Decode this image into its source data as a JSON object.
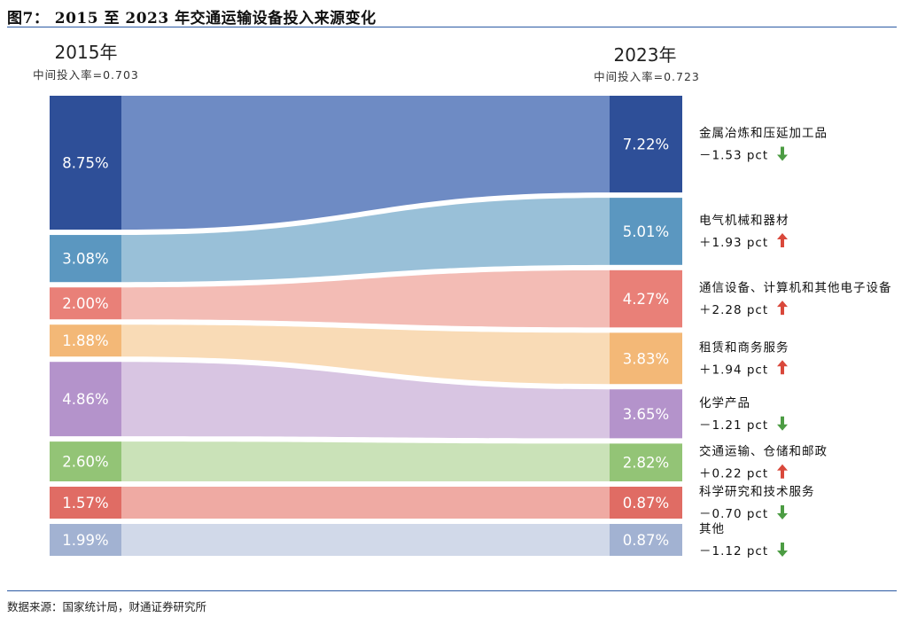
{
  "title": "图7： 2015 至 2023 年交通运输设备投入来源变化",
  "source": "数据来源：国家统计局，财通证券研究所",
  "chart_data": {
    "type": "sankey",
    "left": {
      "year": "2015年",
      "subtitle": "中间投入率=0.703"
    },
    "right": {
      "year": "2023年",
      "subtitle": "中间投入率=0.723"
    },
    "flows": [
      {
        "name": "金属冶炼和压延加工品",
        "v2015": 8.75,
        "v2023": 7.22,
        "v2015_label": "8.75%",
        "v2023_label": "7.22%",
        "change": "－1.53 pct",
        "direction": "down",
        "color": "#2e4f98",
        "flow_color": "#6e8bc4"
      },
      {
        "name": "电气机械和器材",
        "v2015": 3.08,
        "v2023": 5.01,
        "v2015_label": "3.08%",
        "v2023_label": "5.01%",
        "change": "＋1.93 pct",
        "direction": "up",
        "color": "#5b97c0",
        "flow_color": "#99c0d8"
      },
      {
        "name": "通信设备、计算机和其他电子设备",
        "v2015": 2.0,
        "v2023": 4.27,
        "v2015_label": "2.00%",
        "v2023_label": "4.27%",
        "change": "＋2.28 pct",
        "direction": "up",
        "color": "#e98078",
        "flow_color": "#f3bcb5"
      },
      {
        "name": "租赁和商务服务",
        "v2015": 1.88,
        "v2023": 3.83,
        "v2015_label": "1.88%",
        "v2023_label": "3.83%",
        "change": "＋1.94 pct",
        "direction": "up",
        "color": "#f3b877",
        "flow_color": "#f9dbb6"
      },
      {
        "name": "化学产品",
        "v2015": 4.86,
        "v2023": 3.65,
        "v2015_label": "4.86%",
        "v2023_label": "3.65%",
        "change": "－1.21 pct",
        "direction": "down",
        "color": "#b493cb",
        "flow_color": "#d8c5e2"
      },
      {
        "name": "交通运输、仓储和邮政",
        "v2015": 2.6,
        "v2023": 2.82,
        "v2015_label": "2.60%",
        "v2023_label": "2.82%",
        "change": "＋0.22 pct",
        "direction": "up",
        "color": "#93c476",
        "flow_color": "#cae2b8"
      },
      {
        "name": "科学研究和技术服务",
        "v2015": 1.57,
        "v2023": 0.87,
        "v2015_label": "1.57%",
        "v2023_label": "0.87%",
        "change": "－0.70 pct",
        "direction": "down",
        "color": "#e06c64",
        "flow_color": "#efaaa3"
      },
      {
        "name": "其他",
        "v2015": 1.99,
        "v2023": 0.87,
        "v2015_label": "1.99%",
        "v2023_label": "0.87%",
        "change": "－1.12 pct",
        "direction": "down",
        "color": "#a2b2d2",
        "flow_color": "#d1d9e9"
      }
    ],
    "arrow_colors": {
      "up": "#d9483b",
      "down": "#4c9c43"
    }
  }
}
